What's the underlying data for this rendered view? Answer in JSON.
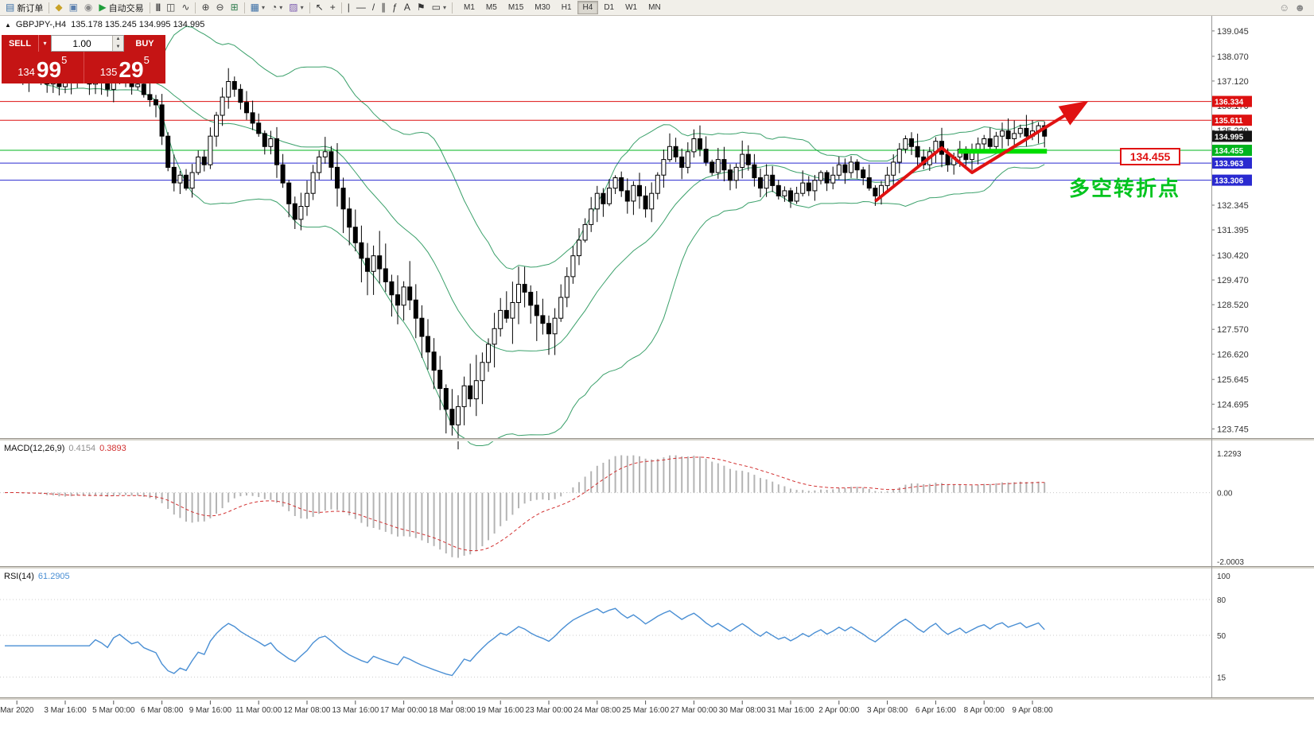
{
  "toolbar": {
    "items": [
      {
        "name": "new-order-button",
        "glyph": "▤",
        "glyph_color": "#3a6ea5",
        "label": "新订单"
      },
      {
        "name": "separator"
      },
      {
        "name": "chart-profiles-button",
        "glyph": "◆",
        "glyph_color": "#c9a227"
      },
      {
        "name": "print-button",
        "glyph": "▣",
        "glyph_color": "#5a7fae"
      },
      {
        "name": "data-window-button",
        "glyph": "◉",
        "glyph_color": "#8a8a8a"
      },
      {
        "name": "autotrading-button",
        "glyph": "▶",
        "glyph_color": "#1f9d3a",
        "label": "自动交易"
      },
      {
        "name": "separator"
      },
      {
        "name": "bar-chart-button",
        "glyph": "|||",
        "glyph_color": "#444444",
        "pipes": true
      },
      {
        "name": "candlestick-chart-button",
        "glyph": "◫",
        "glyph_color": "#444444"
      },
      {
        "name": "line-chart-button",
        "glyph": "∿",
        "glyph_color": "#444444"
      },
      {
        "name": "separator"
      },
      {
        "name": "zoom-in-button",
        "glyph": "⊕",
        "glyph_color": "#444444"
      },
      {
        "name": "zoom-out-button",
        "glyph": "⊖",
        "glyph_color": "#444444"
      },
      {
        "name": "tile-windows-button",
        "glyph": "⊞",
        "glyph_color": "#2f7d4f"
      },
      {
        "name": "separator"
      },
      {
        "name": "new-chart-button",
        "glyph": "▦",
        "glyph_color": "#3a6ea5",
        "dropdown": true
      },
      {
        "name": "period-button",
        "glyph": "◔",
        "glyph_color": "#444444",
        "dropdown": true
      },
      {
        "name": "template-button",
        "glyph": "▨",
        "glyph_color": "#7a5aae",
        "dropdown": true
      },
      {
        "name": "separator"
      },
      {
        "name": "cursor-button",
        "glyph": "↖",
        "glyph_color": "#333333"
      },
      {
        "name": "crosshair-button",
        "glyph": "+",
        "glyph_color": "#333333"
      },
      {
        "name": "separator"
      },
      {
        "name": "vertical-line-button",
        "glyph": "|",
        "glyph_color": "#333333"
      },
      {
        "name": "horizontal-line-button",
        "glyph": "―",
        "glyph_color": "#333333"
      },
      {
        "name": "trendline-button",
        "glyph": "/",
        "glyph_color": "#333333"
      },
      {
        "name": "channel-button",
        "glyph": "∥",
        "glyph_color": "#333333"
      },
      {
        "name": "fibonacci-button",
        "glyph": "ƒ",
        "glyph_color": "#333333"
      },
      {
        "name": "text-button",
        "glyph": "A",
        "glyph_color": "#333333"
      },
      {
        "name": "arrows-button",
        "glyph": "⚑",
        "glyph_color": "#333333"
      },
      {
        "name": "shapes-button",
        "glyph": "▭",
        "glyph_color": "#333333",
        "dropdown": true
      },
      {
        "name": "separator"
      }
    ],
    "timeframes": [
      "M1",
      "M5",
      "M15",
      "M30",
      "H1",
      "H4",
      "D1",
      "W1",
      "MN"
    ],
    "active_timeframe": "H4",
    "right_icons": [
      {
        "name": "community-icon",
        "glyph": "☺"
      },
      {
        "name": "account-icon",
        "glyph": "☻"
      }
    ]
  },
  "header": {
    "collapse_glyph": "▲",
    "symbol": "GBPJPY-,H4",
    "ohlc": "135.178 135.245 134.995 134.995"
  },
  "one_click": {
    "sell_label": "SELL",
    "buy_label": "BUY",
    "dropdown_glyph": "▾",
    "step_up_glyph": "▲",
    "step_down_glyph": "▼",
    "volume": "1.00",
    "sell_price_prefix": "134",
    "sell_price_big": "99",
    "sell_price_sup": "5",
    "buy_price_prefix": "135",
    "buy_price_big": "29",
    "buy_price_sup": "5"
  },
  "macd": {
    "label": "MACD(12,26,9)",
    "v1": "0.4154",
    "v2": "0.3893",
    "scale": [
      "1.2293",
      "0.00",
      "-2.0003"
    ]
  },
  "rsi": {
    "label": "RSI(14)",
    "value": "61.2905",
    "scale": [
      {
        "v": 100,
        "label": "100"
      },
      {
        "v": 80,
        "label": "80"
      },
      {
        "v": 50,
        "label": "50"
      },
      {
        "v": 15,
        "label": "15"
      }
    ],
    "levels": [
      80,
      50,
      15
    ],
    "color": "#4a8fd4"
  },
  "annotations": {
    "price_box": "134.455",
    "turning_point_text": "多空转折点",
    "arrow_color": "#e01212",
    "support_color": "#00dd00"
  },
  "chart_data": {
    "type": "candlestick",
    "symbol": "GBPJPY-",
    "timeframe": "H4",
    "ohlc_header": {
      "open": "135.178",
      "high": "135.245",
      "low": "134.995",
      "close": "134.995"
    },
    "price_range": [
      123.45,
      139.5
    ],
    "band_color": "#3aa06a",
    "bollinger": {
      "period": 20,
      "deviation": 2
    },
    "macd_params": [
      12,
      26,
      9
    ],
    "rsi_period": 14,
    "closes": [
      137.6,
      137.8,
      137.5,
      137.2,
      137.4,
      137.6,
      137.3,
      137.0,
      137.2,
      136.9,
      137.1,
      137.3,
      137.5,
      137.2,
      137.0,
      137.3,
      137.1,
      136.8,
      137.3,
      137.5,
      137.2,
      136.9,
      137.0,
      136.6,
      136.4,
      136.2,
      135.0,
      133.8,
      133.2,
      133.5,
      133.0,
      133.6,
      134.2,
      133.9,
      135.0,
      135.8,
      136.5,
      137.1,
      136.8,
      136.3,
      135.9,
      135.5,
      135.1,
      134.6,
      134.9,
      133.9,
      133.2,
      132.4,
      131.8,
      132.3,
      132.8,
      133.6,
      134.2,
      134.4,
      133.8,
      133.0,
      132.2,
      131.5,
      130.9,
      130.3,
      129.8,
      130.4,
      129.9,
      129.4,
      128.9,
      128.5,
      129.2,
      128.7,
      128.0,
      127.3,
      126.7,
      126.0,
      125.3,
      124.5,
      123.9,
      124.6,
      125.4,
      124.9,
      125.6,
      126.3,
      127.0,
      127.6,
      128.3,
      128.0,
      128.6,
      129.3,
      129.0,
      128.5,
      128.1,
      127.8,
      127.4,
      128.0,
      128.8,
      129.6,
      130.4,
      131.0,
      131.6,
      132.2,
      132.8,
      132.4,
      133.0,
      133.4,
      132.9,
      132.5,
      133.1,
      132.7,
      132.2,
      132.8,
      133.5,
      134.1,
      134.6,
      134.2,
      133.8,
      134.4,
      134.9,
      134.5,
      134.0,
      133.6,
      134.1,
      133.7,
      133.3,
      133.8,
      134.3,
      133.9,
      133.4,
      133.0,
      133.5,
      133.1,
      132.7,
      132.9,
      132.5,
      132.8,
      133.2,
      132.9,
      133.3,
      133.6,
      133.2,
      133.5,
      133.9,
      133.6,
      134.0,
      133.7,
      133.4,
      133.0,
      132.7,
      133.1,
      133.5,
      134.0,
      134.5,
      134.9,
      134.6,
      134.2,
      133.9,
      134.4,
      134.8,
      134.3,
      133.9,
      134.2,
      134.5,
      134.1,
      134.4,
      134.7,
      134.9,
      134.6,
      135.0,
      135.2,
      134.9,
      135.1,
      135.3,
      135.0,
      135.2,
      135.4,
      134.995
    ],
    "price_axis": [
      "139.045",
      "138.070",
      "137.120",
      "136.170",
      "135.220",
      "132.345",
      "131.395",
      "130.420",
      "129.470",
      "128.520",
      "127.570",
      "126.620",
      "125.645",
      "124.695",
      "123.745"
    ],
    "hlines": [
      {
        "price": 136.334,
        "label": "136.334",
        "color": "#dd1111"
      },
      {
        "price": 135.611,
        "label": "135.611",
        "color": "#dd1111"
      },
      {
        "price": 134.455,
        "label": "134.455",
        "color": "#00b41e"
      },
      {
        "price": 133.963,
        "label": "133.963",
        "color": "#2a2ad0"
      },
      {
        "price": 133.306,
        "label": "133.306",
        "color": "#2a2ad0"
      }
    ],
    "bid_tag": {
      "price": 134.995,
      "label": "134.995",
      "color": "#141414"
    },
    "trend_arrow": [
      [
        144,
        132.5
      ],
      [
        155,
        134.55
      ],
      [
        160,
        133.6
      ],
      [
        177.5,
        136.1
      ]
    ],
    "support_segment": {
      "i1": 157.8,
      "i2": 172.4,
      "price": 134.42
    },
    "time_axis": [
      {
        "label": "Mar 2020",
        "i": 2
      },
      {
        "label": "3 Mar 16:00",
        "i": 10
      },
      {
        "label": "5 Mar 00:00",
        "i": 18
      },
      {
        "label": "6 Mar 08:00",
        "i": 26
      },
      {
        "label": "9 Mar 16:00",
        "i": 34
      },
      {
        "label": "11 Mar 00:00",
        "i": 42
      },
      {
        "label": "12 Mar 08:00",
        "i": 50
      },
      {
        "label": "13 Mar 16:00",
        "i": 58
      },
      {
        "label": "17 Mar 00:00",
        "i": 66
      },
      {
        "label": "18 Mar 08:00",
        "i": 74
      },
      {
        "label": "19 Mar 16:00",
        "i": 82
      },
      {
        "label": "23 Mar 00:00",
        "i": 90
      },
      {
        "label": "24 Mar 08:00",
        "i": 98
      },
      {
        "label": "25 Mar 16:00",
        "i": 106
      },
      {
        "label": "27 Mar 00:00",
        "i": 114
      },
      {
        "label": "30 Mar 08:00",
        "i": 122
      },
      {
        "label": "31 Mar 16:00",
        "i": 130
      },
      {
        "label": "2 Apr 00:00",
        "i": 138
      },
      {
        "label": "3 Apr 08:00",
        "i": 146
      },
      {
        "label": "6 Apr 16:00",
        "i": 154
      },
      {
        "label": "8 Apr 00:00",
        "i": 162
      },
      {
        "label": "9 Apr 08:00",
        "i": 170
      }
    ]
  }
}
